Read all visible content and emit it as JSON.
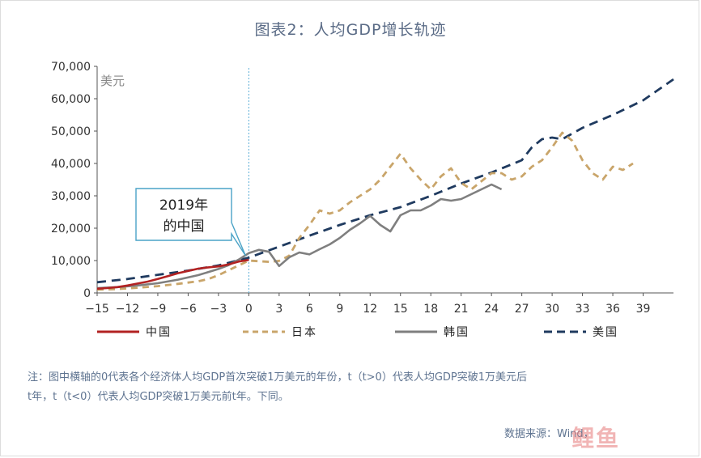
{
  "title": "图表2：人均GDP增长轨迹",
  "chart_data": {
    "type": "line",
    "title": "图表2：人均GDP增长轨迹",
    "ylabel": "美元",
    "xlabel": "",
    "xlim": [
      -15,
      42
    ],
    "ylim": [
      0,
      70000
    ],
    "x_ticks": [
      -15,
      -12,
      -9,
      -6,
      -3,
      0,
      3,
      6,
      9,
      12,
      15,
      18,
      21,
      24,
      27,
      30,
      33,
      36,
      39
    ],
    "y_ticks": [
      0,
      10000,
      20000,
      30000,
      40000,
      50000,
      60000,
      70000
    ],
    "y_tick_labels": [
      "0",
      "10,000",
      "20,000",
      "30,000",
      "40,000",
      "50,000",
      "60,000",
      "70,000"
    ],
    "grid": false,
    "legend_position": "bottom",
    "reference_line_x": 0,
    "annotation": {
      "text_line1": "2019年",
      "text_line2": "的中国",
      "points_to": [
        0,
        11000
      ]
    },
    "series": [
      {
        "name": "中国",
        "style": "solid",
        "color": "#b22222",
        "x": [
          -15,
          -14,
          -13,
          -12,
          -11,
          -10,
          -9,
          -8,
          -7,
          -6,
          -5,
          -4,
          -3,
          -2,
          -1,
          0
        ],
        "y": [
          1300,
          1500,
          1800,
          2300,
          2900,
          3500,
          4300,
          5200,
          6100,
          6800,
          7500,
          7900,
          8200,
          8800,
          9700,
          10200
        ]
      },
      {
        "name": "日本",
        "style": "dashed",
        "color": "#c9a56a",
        "x": [
          -15,
          -13,
          -11,
          -9,
          -7,
          -5,
          -4,
          -3,
          -2,
          -1,
          0,
          1,
          2,
          3,
          4,
          5,
          6,
          7,
          8,
          9,
          10,
          11,
          12,
          13,
          14,
          15,
          16,
          17,
          18,
          19,
          20,
          21,
          22,
          23,
          24,
          25,
          26,
          27,
          28,
          29,
          30,
          31,
          32,
          33,
          34,
          35,
          36,
          37,
          38
        ],
        "y": [
          1000,
          1200,
          1600,
          2100,
          2800,
          3600,
          4300,
          5500,
          7000,
          8500,
          10000,
          9800,
          9600,
          9900,
          11500,
          17000,
          21000,
          25500,
          24500,
          25500,
          28000,
          30000,
          32000,
          35000,
          39000,
          43000,
          38500,
          35000,
          32000,
          36000,
          38500,
          34000,
          32000,
          34500,
          37000,
          37000,
          35000,
          36000,
          39000,
          41000,
          45000,
          49500,
          47000,
          41000,
          37000,
          35000,
          39000,
          38000,
          40000
        ]
      },
      {
        "name": "韩国",
        "style": "solid",
        "color": "#7f7f7f",
        "x": [
          -15,
          -13,
          -11,
          -9,
          -7,
          -5,
          -3,
          -2,
          -1,
          0,
          1,
          2,
          3,
          4,
          5,
          6,
          7,
          8,
          9,
          10,
          11,
          12,
          13,
          14,
          15,
          16,
          17,
          18,
          19,
          20,
          21,
          22,
          23,
          24,
          25
        ],
        "y": [
          1500,
          1800,
          2300,
          3000,
          4100,
          5500,
          7400,
          8600,
          10300,
          12300,
          13300,
          12700,
          8300,
          11000,
          12500,
          11900,
          13500,
          15000,
          17000,
          19500,
          21500,
          23800,
          21000,
          19000,
          24000,
          25500,
          25500,
          27000,
          29000,
          28500,
          29000,
          30500,
          32000,
          33500,
          32000
        ]
      },
      {
        "name": "美国",
        "style": "dashed",
        "color": "#1f3a5f",
        "x": [
          -15,
          -12,
          -9,
          -6,
          -3,
          0,
          3,
          6,
          9,
          12,
          15,
          18,
          21,
          24,
          27,
          28,
          29,
          30,
          31,
          33,
          36,
          39,
          42
        ],
        "y": [
          3300,
          4300,
          5600,
          6900,
          8500,
          10900,
          14300,
          17700,
          21000,
          24000,
          26500,
          30000,
          33800,
          37200,
          41000,
          45000,
          47500,
          48000,
          47500,
          51000,
          55000,
          59500,
          66000
        ]
      }
    ]
  },
  "note": {
    "line1": "注：图中横轴的0代表各个经济体人均GDP首次突破1万美元的年份，t（t>0）代表人均GDP突破1万美元后",
    "line2": "t年，t（t<0）代表人均GDP突破1万美元前t年。下同。"
  },
  "source": "数据来源：Wind，",
  "watermark": "鲤鱼"
}
